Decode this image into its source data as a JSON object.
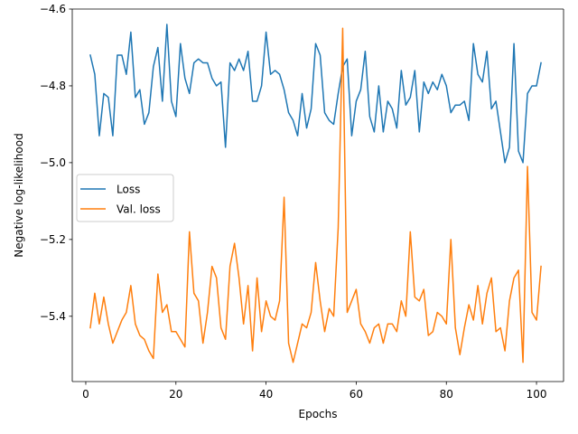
{
  "chart_data": {
    "type": "line",
    "title": "",
    "xlabel": "Epochs",
    "ylabel": "Negative log-likelihood",
    "xlim": [
      -3,
      106
    ],
    "ylim": [
      -5.57,
      -4.6
    ],
    "xticks": [
      0,
      20,
      40,
      60,
      80,
      100
    ],
    "yticks": [
      -5.4,
      -5.2,
      -5.0,
      -4.8,
      -4.6
    ],
    "ytick_labels": [
      "−5.4",
      "−5.2",
      "−5.0",
      "−4.8",
      "−4.6"
    ],
    "grid": false,
    "legend_position": "center-left",
    "x": [
      1,
      2,
      3,
      4,
      5,
      6,
      7,
      8,
      9,
      10,
      11,
      12,
      13,
      14,
      15,
      16,
      17,
      18,
      19,
      20,
      21,
      22,
      23,
      24,
      25,
      26,
      27,
      28,
      29,
      30,
      31,
      32,
      33,
      34,
      35,
      36,
      37,
      38,
      39,
      40,
      41,
      42,
      43,
      44,
      45,
      46,
      47,
      48,
      49,
      50,
      51,
      52,
      53,
      54,
      55,
      56,
      57,
      58,
      59,
      60,
      61,
      62,
      63,
      64,
      65,
      66,
      67,
      68,
      69,
      70,
      71,
      72,
      73,
      74,
      75,
      76,
      77,
      78,
      79,
      80,
      81,
      82,
      83,
      84,
      85,
      86,
      87,
      88,
      89,
      90,
      91,
      92,
      93,
      94,
      95,
      96,
      97,
      98,
      99,
      100,
      101
    ],
    "series": [
      {
        "name": "Loss",
        "color": "#1f77b4",
        "values": [
          -4.72,
          -4.77,
          -4.93,
          -4.82,
          -4.83,
          -4.93,
          -4.72,
          -4.72,
          -4.77,
          -4.66,
          -4.83,
          -4.81,
          -4.9,
          -4.87,
          -4.75,
          -4.7,
          -4.84,
          -4.64,
          -4.84,
          -4.88,
          -4.69,
          -4.78,
          -4.82,
          -4.74,
          -4.73,
          -4.74,
          -4.74,
          -4.78,
          -4.8,
          -4.79,
          -4.96,
          -4.74,
          -4.76,
          -4.73,
          -4.76,
          -4.71,
          -4.84,
          -4.84,
          -4.8,
          -4.66,
          -4.77,
          -4.76,
          -4.77,
          -4.81,
          -4.87,
          -4.89,
          -4.93,
          -4.82,
          -4.91,
          -4.86,
          -4.69,
          -4.72,
          -4.87,
          -4.89,
          -4.9,
          -4.82,
          -4.75,
          -4.73,
          -4.93,
          -4.84,
          -4.81,
          -4.71,
          -4.88,
          -4.92,
          -4.8,
          -4.92,
          -4.84,
          -4.86,
          -4.91,
          -4.76,
          -4.85,
          -4.83,
          -4.76,
          -4.92,
          -4.79,
          -4.82,
          -4.79,
          -4.81,
          -4.77,
          -4.8,
          -4.87,
          -4.85,
          -4.85,
          -4.84,
          -4.89,
          -4.69,
          -4.77,
          -4.79,
          -4.71,
          -4.86,
          -4.84,
          -4.92,
          -5.0,
          -4.96,
          -4.69,
          -4.97,
          -5.0,
          -4.82,
          -4.8,
          -4.8,
          -4.74
        ]
      },
      {
        "name": "Val. loss",
        "color": "#ff7f0e",
        "values": [
          -5.43,
          -5.34,
          -5.42,
          -5.35,
          -5.42,
          -5.47,
          -5.44,
          -5.41,
          -5.39,
          -5.32,
          -5.42,
          -5.45,
          -5.46,
          -5.49,
          -5.51,
          -5.29,
          -5.39,
          -5.37,
          -5.44,
          -5.44,
          -5.46,
          -5.48,
          -5.18,
          -5.34,
          -5.36,
          -5.47,
          -5.39,
          -5.27,
          -5.3,
          -5.43,
          -5.46,
          -5.27,
          -5.21,
          -5.3,
          -5.42,
          -5.32,
          -5.49,
          -5.3,
          -5.44,
          -5.36,
          -5.4,
          -5.41,
          -5.36,
          -5.09,
          -5.47,
          -5.52,
          -5.47,
          -5.42,
          -5.43,
          -5.39,
          -5.26,
          -5.36,
          -5.44,
          -5.38,
          -5.4,
          -5.17,
          -4.65,
          -5.39,
          -5.36,
          -5.33,
          -5.42,
          -5.44,
          -5.47,
          -5.43,
          -5.42,
          -5.47,
          -5.42,
          -5.42,
          -5.44,
          -5.36,
          -5.4,
          -5.18,
          -5.35,
          -5.36,
          -5.33,
          -5.45,
          -5.44,
          -5.39,
          -5.4,
          -5.42,
          -5.2,
          -5.43,
          -5.5,
          -5.43,
          -5.37,
          -5.41,
          -5.32,
          -5.42,
          -5.34,
          -5.3,
          -5.44,
          -5.43,
          -5.49,
          -5.36,
          -5.3,
          -5.28,
          -5.52,
          -5.01,
          -5.39,
          -5.41,
          -5.27
        ]
      }
    ]
  }
}
